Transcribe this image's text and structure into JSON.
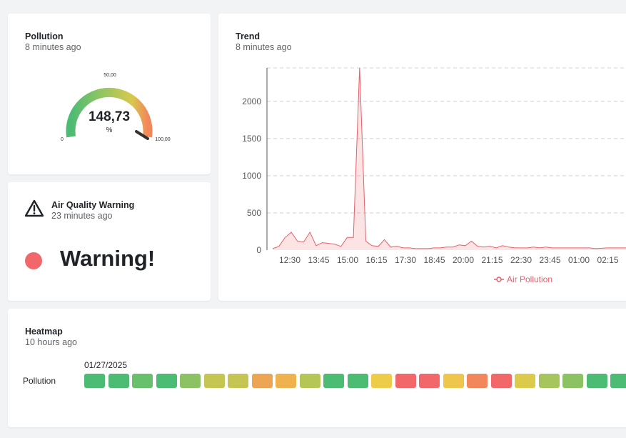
{
  "pollution_card": {
    "title": "Pollution",
    "subtitle": "8 minutes ago",
    "value": "148,73",
    "unit": "%",
    "gauge_min": "0",
    "gauge_mid": "50,00",
    "gauge_max": "100,00"
  },
  "warning_card": {
    "title": "Air Quality Warning",
    "subtitle": "23 minutes ago",
    "status_text": "Warning!",
    "status_color": "#f2676a"
  },
  "trend_card": {
    "title": "Trend",
    "subtitle": "8 minutes ago"
  },
  "chart_data": {
    "type": "area",
    "title": "Trend",
    "xlabel": "",
    "ylabel": "",
    "ylim": [
      0,
      2450
    ],
    "yticks": [
      "0",
      "500",
      "1000",
      "1500",
      "2000"
    ],
    "ytick_values": [
      0,
      500,
      1000,
      1500,
      2000
    ],
    "xticks": [
      "12:30",
      "13:45",
      "15:00",
      "16:15",
      "17:30",
      "18:45",
      "20:00",
      "21:15",
      "22:30",
      "23:45",
      "01:00",
      "02:15"
    ],
    "legend": "Air Pollution",
    "legend_position": "bottom",
    "series": [
      {
        "name": "Air Pollution",
        "color": "#e5606a",
        "values": [
          20,
          50,
          170,
          240,
          120,
          110,
          240,
          60,
          100,
          90,
          80,
          50,
          170,
          170,
          2450,
          120,
          60,
          50,
          140,
          40,
          50,
          30,
          30,
          20,
          20,
          20,
          30,
          30,
          40,
          40,
          70,
          60,
          120,
          50,
          40,
          50,
          30,
          60,
          40,
          30,
          30,
          30,
          40,
          30,
          40,
          30,
          30,
          30,
          30,
          30,
          30,
          30,
          20,
          25,
          30,
          30,
          30,
          30
        ]
      }
    ]
  },
  "heatmap_card": {
    "title": "Heatmap",
    "subtitle": "10 hours ago",
    "date_label": "01/27/2025",
    "row_label": "Pollution",
    "cells": [
      "#4cbb74",
      "#4cbb74",
      "#68bf6c",
      "#4cbb74",
      "#8cc264",
      "#c4c553",
      "#c4c553",
      "#eda453",
      "#eeb24f",
      "#b6c656",
      "#4cbb74",
      "#4cbb74",
      "#eccc48",
      "#f2676a",
      "#f2676a",
      "#eec64c",
      "#f2875b",
      "#f2676a",
      "#dccb4a",
      "#a6c55c",
      "#8cc264",
      "#4cbb74",
      "#4cbb74"
    ]
  }
}
